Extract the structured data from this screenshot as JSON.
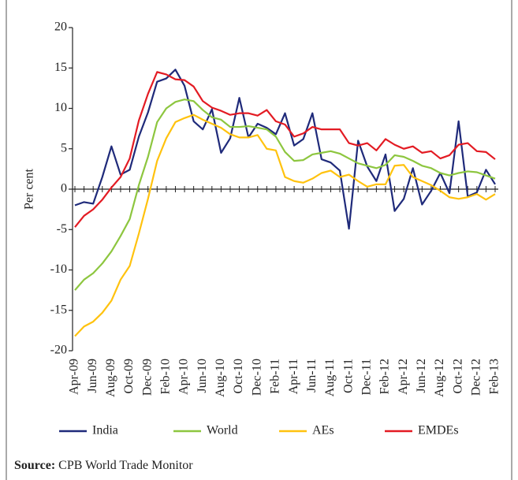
{
  "chart_data": {
    "type": "line",
    "ylabel": "Per cent",
    "categories": [
      "Apr-09",
      null,
      "Jun-09",
      null,
      "Aug-09",
      null,
      "Oct-09",
      null,
      "Dec-09",
      null,
      "Feb-10",
      null,
      "Apr-10",
      null,
      "Jun-10",
      null,
      "Aug-10",
      null,
      "Oct-10",
      null,
      "Dec-10",
      null,
      "Feb-11",
      null,
      "Apr-11",
      null,
      "Jun-11",
      null,
      "Aug-11",
      null,
      "Oct-11",
      null,
      "Dec-11",
      null,
      "Feb-12",
      null,
      "Apr-12",
      null,
      "Jun-12",
      null,
      "Aug-12",
      null,
      "Oct-12",
      null,
      "Dec-12",
      null,
      "Feb-13"
    ],
    "series": [
      {
        "name": "India",
        "color": "#1f2a7a",
        "values": [
          -2,
          -1.6,
          -1.8,
          1.5,
          5.3,
          1.8,
          2.4,
          6.5,
          9.5,
          13.3,
          13.7,
          14.8,
          12.8,
          8.4,
          7.4,
          9.9,
          4.5,
          6.3,
          11.3,
          6.4,
          8.1,
          7.6,
          6.8,
          9.4,
          5.4,
          6.2,
          9.4,
          3.7,
          3.3,
          2.3,
          -4.9,
          6.0,
          2.8,
          1.0,
          4.3,
          -2.7,
          -1.2,
          2.6,
          -1.9,
          -0.2,
          2.0,
          -0.5,
          8.4,
          -0.9,
          -0.4,
          2.4,
          0.6
        ]
      },
      {
        "name": "World",
        "color": "#8dc63f",
        "values": [
          -12.5,
          -11.2,
          -10.4,
          -9.2,
          -7.7,
          -5.8,
          -3.7,
          0.5,
          4.0,
          8.3,
          10.0,
          10.8,
          11.1,
          10.9,
          9.8,
          8.9,
          8.6,
          7.7,
          7.7,
          7.8,
          7.6,
          7.4,
          6.5,
          4.6,
          3.5,
          3.6,
          4.3,
          4.5,
          4.7,
          4.4,
          3.8,
          3.2,
          2.9,
          2.6,
          3.0,
          4.2,
          4.0,
          3.5,
          2.9,
          2.6,
          2.0,
          1.7,
          2.0,
          2.2,
          2.1,
          1.7,
          1.3
        ]
      },
      {
        "name": "AEs",
        "color": "#ffc20e",
        "values": [
          -18.2,
          -17.0,
          -16.4,
          -15.3,
          -13.8,
          -11.2,
          -9.5,
          -5.5,
          -1.2,
          3.5,
          6.3,
          8.3,
          8.8,
          9.2,
          8.6,
          8.1,
          7.6,
          6.8,
          6.4,
          6.4,
          6.7,
          5.0,
          4.8,
          1.5,
          1.0,
          0.8,
          1.3,
          2.0,
          2.3,
          1.5,
          1.8,
          1.0,
          0.3,
          0.6,
          0.6,
          2.9,
          3.0,
          1.5,
          1.0,
          0.5,
          -0.2,
          -1.0,
          -1.2,
          -1.0,
          -0.6,
          -1.3,
          -0.6
        ]
      },
      {
        "name": "EMDEs",
        "color": "#e31b23",
        "values": [
          -4.7,
          -3.3,
          -2.5,
          -1.3,
          0.2,
          1.5,
          3.8,
          8.5,
          11.8,
          14.5,
          14.2,
          13.6,
          13.5,
          12.7,
          10.9,
          10.1,
          9.7,
          9.2,
          9.4,
          9.4,
          9.1,
          9.8,
          8.4,
          8.0,
          6.5,
          6.9,
          7.7,
          7.4,
          7.4,
          7.4,
          5.7,
          5.4,
          5.7,
          4.8,
          6.2,
          5.5,
          5.0,
          5.3,
          4.5,
          4.7,
          3.8,
          4.2,
          5.5,
          5.7,
          4.7,
          4.6,
          3.7
        ]
      }
    ],
    "ylim": [
      -20,
      20
    ],
    "yticks": [
      20,
      15,
      10,
      5,
      0,
      -5,
      -10,
      -15,
      -20
    ],
    "legend": "bottom",
    "source_label": "Source:",
    "source": "CPB World Trade Monitor"
  }
}
